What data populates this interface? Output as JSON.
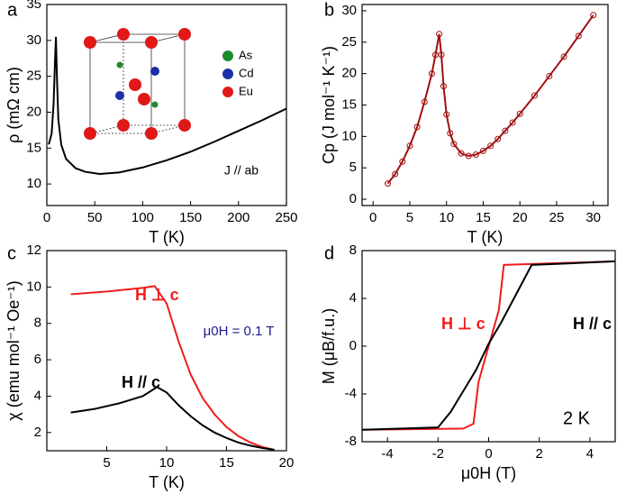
{
  "chart_data": [
    {
      "type": "line",
      "panel": "a",
      "xlabel": "T (K)",
      "ylabel": "ρ (mΩ cm)",
      "xlim": [
        0,
        250
      ],
      "xticks": [
        0,
        50,
        100,
        150,
        200,
        250
      ],
      "ylim": [
        7,
        35
      ],
      "yticks": [
        10,
        15,
        20,
        25,
        30,
        35
      ],
      "annotations": [
        {
          "text": "J // ab",
          "color": "#000000"
        }
      ],
      "inset_legend": [
        {
          "name": "As",
          "color": "#1f8a2e"
        },
        {
          "name": "Cd",
          "color": "#1c2fa8"
        },
        {
          "name": "Eu",
          "color": "#e01818"
        }
      ],
      "series": [
        {
          "color": "#000000",
          "x": [
            2,
            5,
            7,
            8.5,
            9.5,
            10.5,
            12,
            15,
            20,
            30,
            40,
            55,
            75,
            100,
            125,
            150,
            175,
            200,
            225,
            250
          ],
          "values": [
            15.5,
            17,
            21,
            27,
            30.5,
            25,
            19,
            15.5,
            13.5,
            12.2,
            11.7,
            11.4,
            11.6,
            12.3,
            13.3,
            14.5,
            15.9,
            17.4,
            18.9,
            20.5
          ]
        }
      ]
    },
    {
      "type": "line",
      "panel": "b",
      "xlabel": "T (K)",
      "ylabel": "Cp (J mol⁻¹ K⁻¹)",
      "markers": true,
      "xlim": [
        -1.5,
        32
      ],
      "xticks": [
        0,
        5,
        10,
        15,
        20,
        25,
        30
      ],
      "ylim": [
        -1,
        31
      ],
      "yticks": [
        0,
        5,
        10,
        15,
        20,
        25,
        30
      ],
      "annotations": [],
      "series": [
        {
          "color": "#a01010",
          "x": [
            2,
            3,
            4,
            5,
            6,
            7,
            8,
            8.5,
            9,
            9.3,
            9.6,
            10,
            10.5,
            11,
            12,
            13,
            14,
            15,
            16,
            17,
            18,
            19,
            20,
            22,
            24,
            26,
            28,
            30
          ],
          "values": [
            2.5,
            4,
            6,
            8.5,
            11.5,
            15.5,
            20,
            23,
            26.3,
            23,
            18,
            13.5,
            10.5,
            8.8,
            7.3,
            6.9,
            7.1,
            7.7,
            8.5,
            9.6,
            10.9,
            12.2,
            13.6,
            16.5,
            19.6,
            22.7,
            26,
            29.3
          ]
        }
      ]
    },
    {
      "type": "line",
      "panel": "c",
      "xlabel": "T (K)",
      "ylabel": "χ (emu mol⁻¹ Oe⁻¹)",
      "xlim": [
        0,
        20
      ],
      "xticks": [
        5,
        10,
        15,
        20
      ],
      "ylim": [
        1,
        12
      ],
      "yticks": [
        2,
        4,
        6,
        8,
        10,
        12
      ],
      "annotations": [
        {
          "text": "μ0H = 0.1 T",
          "color": "#1a1a8c"
        }
      ],
      "series": [
        {
          "name": "H ⊥ c",
          "color": "#ee1c1c",
          "x": [
            2,
            5,
            8,
            9,
            10,
            11,
            12,
            13,
            14,
            15,
            16,
            17,
            18,
            19
          ],
          "values": [
            9.6,
            9.75,
            9.95,
            10.05,
            9.1,
            7,
            5.2,
            3.9,
            3,
            2.3,
            1.8,
            1.45,
            1.2,
            1.05
          ]
        },
        {
          "name": "H // c",
          "color": "#000000",
          "x": [
            2,
            4,
            6,
            8,
            9.2,
            10,
            11,
            12,
            13,
            14,
            15,
            16,
            17,
            18,
            19
          ],
          "values": [
            3.1,
            3.3,
            3.6,
            4,
            4.5,
            4.2,
            3.5,
            2.9,
            2.4,
            2,
            1.7,
            1.45,
            1.28,
            1.15,
            1.05
          ]
        }
      ]
    },
    {
      "type": "line",
      "panel": "d",
      "xlabel": "μ0H (T)",
      "ylabel": "M (μB/f.u.)",
      "xlim": [
        -5,
        5
      ],
      "xticks": [
        -4,
        -2,
        0,
        2,
        4
      ],
      "ylim": [
        -8,
        8
      ],
      "yticks": [
        -8,
        -4,
        0,
        4,
        8
      ],
      "annotations": [
        {
          "text": "2 K",
          "color": "#000000"
        }
      ],
      "series": [
        {
          "name": "H ⊥ c",
          "color": "#ee1c1c",
          "x": [
            -5,
            -1,
            -0.6,
            -0.4,
            0,
            0.4,
            0.6,
            5
          ],
          "values": [
            -7,
            -6.9,
            -6.5,
            -3,
            0,
            3,
            6.8,
            7.1
          ]
        },
        {
          "name": "H // c",
          "color": "#000000",
          "x": [
            -5,
            -2,
            -1.5,
            -0.5,
            0,
            0.5,
            1,
            1.7,
            5
          ],
          "values": [
            -7,
            -6.8,
            -5.5,
            -2,
            0.2,
            2,
            4,
            6.8,
            7.1
          ]
        }
      ]
    }
  ]
}
